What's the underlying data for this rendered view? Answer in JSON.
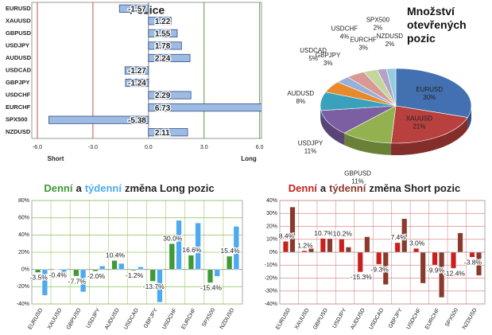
{
  "chart_data": [
    {
      "type": "hbar",
      "title": "Pozice",
      "categories": [
        "EURUSD",
        "XAUUSD",
        "GBPUSD",
        "USDJPY",
        "AUDUSD",
        "USDCAD",
        "GBPJPY",
        "USDCHF",
        "EURCHF",
        "SPX500",
        "NZDUSD"
      ],
      "values": [
        -1.57,
        1.22,
        1.55,
        1.78,
        2.24,
        -1.27,
        -1.24,
        2.29,
        6.73,
        -5.38,
        2.11
      ],
      "color": "#9dbbe3",
      "xlim": [
        -6.3,
        6.1
      ],
      "xticks": [
        {
          "value": -6,
          "label": "-6.0"
        },
        {
          "value": -3,
          "label": "-3.0"
        },
        {
          "value": 0,
          "label": "0.0"
        },
        {
          "value": 3,
          "label": "3.0"
        },
        {
          "value": 6,
          "label": "6.0"
        }
      ],
      "grid": true,
      "annotations": [
        "Short",
        "Long"
      ]
    },
    {
      "type": "pie",
      "title": "Množství otevřených pozic",
      "categories": [
        "EURUSD",
        "XAUUSD",
        "GBPUSD",
        "USDJPY",
        "AUDUSD",
        "USDCAD",
        "GBPJPY",
        "USDCHF",
        "EURCHF",
        "SPX500",
        "NZDUSD"
      ],
      "values": [
        30,
        21,
        11,
        11,
        8,
        5,
        3,
        4,
        3,
        2,
        2
      ],
      "value_labels": [
        "30%",
        "21%",
        "11%",
        "11%",
        "8%",
        "5%",
        "3%",
        "4%",
        "3%",
        "2%",
        "2%"
      ],
      "colors": [
        "#4270b0",
        "#b8403e",
        "#93b24f",
        "#7b5fa2",
        "#3aa1bd",
        "#e8892e",
        "#97b0d9",
        "#d99896",
        "#c3d69b",
        "#b3a2c8",
        "#93cddd"
      ]
    },
    {
      "type": "grouped_bar",
      "title_joiner": "a",
      "title_rest": "změna Long pozic",
      "categories": [
        "EURUSD",
        "XAUUSD",
        "GBPUSD",
        "USDJPY",
        "AUDUSD",
        "USDCAD",
        "GBPJPY",
        "USDCHF",
        "EURCHF",
        "SPX500",
        "NZDUSD"
      ],
      "series": [
        {
          "name": "Denní",
          "color": "#3f9a36",
          "values": [
            -3.5,
            -0.4,
            -7.7,
            -2.0,
            10.4,
            -1.2,
            -13.7,
            30.0,
            16.6,
            -15.4,
            15.4
          ],
          "value_labels": [
            "-3.5%",
            "-0.4%",
            "-7.7%",
            "-2.0%",
            "10.4%",
            "-1.2%",
            "-13.7%",
            "30.0%",
            "16.6%",
            "-15.4%",
            "15.4%"
          ]
        },
        {
          "name": "týdenní",
          "color": "#4eaaf0",
          "values": [
            -30,
            -6,
            -26,
            4,
            7,
            3,
            -38,
            57,
            54,
            -8,
            50
          ]
        }
      ],
      "ylim": [
        -40,
        80
      ],
      "yticks": [
        {
          "value": 80,
          "label": "80%"
        },
        {
          "value": 60,
          "label": "60%"
        },
        {
          "value": 40,
          "label": "40%"
        },
        {
          "value": 20,
          "label": "20%"
        },
        {
          "value": 0,
          "label": "0%"
        },
        {
          "value": -20,
          "label": "-20%"
        },
        {
          "value": -40,
          "label": "-40%"
        }
      ],
      "grid_color": "#9bc86a"
    },
    {
      "type": "grouped_bar",
      "title_joiner": "a",
      "title_rest": "změna Short pozic",
      "categories": [
        "EURUSD",
        "XAUUSD",
        "GBPUSD",
        "USDJPY",
        "AUDUSD",
        "USDCAD",
        "GBPJPY",
        "USDCHF",
        "EURCHF",
        "SPX500",
        "NZDUSD"
      ],
      "series": [
        {
          "name": "Denní",
          "color": "#c8201d",
          "values": [
            8.4,
            1.2,
            10.7,
            10.2,
            -15.3,
            -9.3,
            7.4,
            3.0,
            -9.9,
            -12.4,
            -3.8
          ],
          "value_labels": [
            "8.4%",
            "1.2%",
            "10.7%",
            "10.2%",
            "-15.3%",
            "-9.3%",
            "7.4%",
            "3.0%",
            "-9.9%",
            "-12.4%",
            "-3.8%"
          ]
        },
        {
          "name": "týdenní",
          "color": "#8a3a2c",
          "values": [
            35,
            3,
            10.5,
            4,
            12,
            -25,
            26,
            -24,
            -35,
            15,
            -18
          ]
        }
      ],
      "ylim": [
        -40,
        40
      ],
      "yticks": [
        {
          "value": 40,
          "label": "40%"
        },
        {
          "value": 30,
          "label": "30%"
        },
        {
          "value": 20,
          "label": "20%"
        },
        {
          "value": 10,
          "label": "10%"
        },
        {
          "value": 0,
          "label": "0%"
        },
        {
          "value": -10,
          "label": "-10%"
        },
        {
          "value": -20,
          "label": "-20%"
        },
        {
          "value": -30,
          "label": "-30%"
        },
        {
          "value": -40,
          "label": "-40%"
        }
      ],
      "grid_color": "#d98c8a"
    }
  ]
}
